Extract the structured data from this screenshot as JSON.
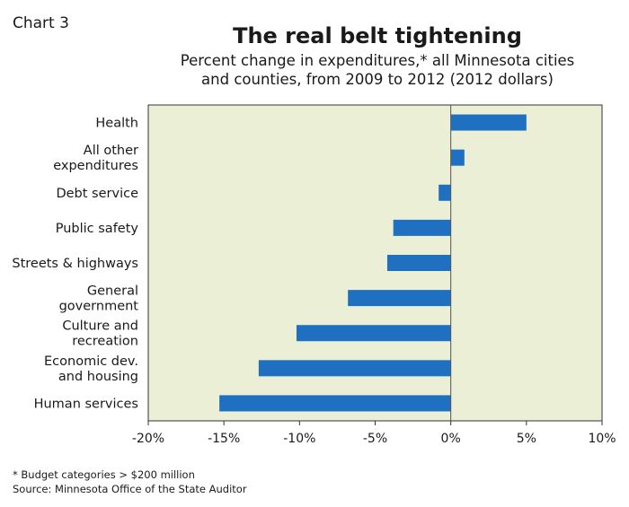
{
  "header": {
    "chart_number": "Chart 3",
    "title": "The real belt tightening",
    "subtitle_line1": "Percent change in expenditures,* all Minnesota cities",
    "subtitle_line2": "and counties, from 2009 to 2012 (2012 dollars)"
  },
  "footer": {
    "footnote": "* Budget categories > $200 million",
    "source": "Source: Minnesota Office of the State Auditor"
  },
  "chart_data": {
    "type": "bar",
    "orientation": "horizontal",
    "title": "The real belt tightening",
    "categories": [
      [
        "Health"
      ],
      [
        "All other",
        "expenditures"
      ],
      [
        "Debt service"
      ],
      [
        "Public safety"
      ],
      [
        "Streets & highways"
      ],
      [
        "General",
        "government"
      ],
      [
        "Culture and",
        "recreation"
      ],
      [
        "Economic dev.",
        "and housing"
      ],
      [
        "Human services"
      ]
    ],
    "values": [
      5.0,
      0.9,
      -0.8,
      -3.8,
      -4.2,
      -6.8,
      -10.2,
      -12.7,
      -15.3
    ],
    "xlim": [
      -20,
      10
    ],
    "xticks": [
      -20,
      -15,
      -10,
      -5,
      0,
      5,
      10
    ],
    "xtick_labels": [
      "-20%",
      "-15%",
      "-10%",
      "-5%",
      "0%",
      "5%",
      "10%"
    ],
    "bar_color": "#1f70c1",
    "plot_background": "#eaefd6",
    "grid": false
  }
}
